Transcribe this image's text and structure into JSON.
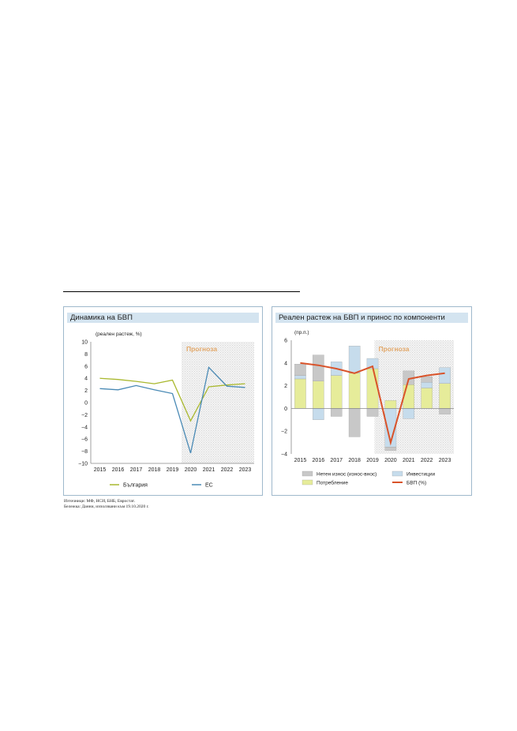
{
  "forecast_label": "Прогноза",
  "source_line1": "Източници: МФ, НСИ, БНБ, Евростат.",
  "source_line2": "Бележка: Данни, използвани към 19.10.2020 г.",
  "colors": {
    "bulgaria": "#a9b82e",
    "eu": "#4a8ab5",
    "gdp": "#d9532a",
    "net_exports": "#c8c8c8",
    "investment": "#c6dcec",
    "consumption": "#e6ec9a",
    "forecast_text": "#e3a96b",
    "title_bg": "#d4e4f0"
  },
  "chart_data": [
    {
      "type": "line",
      "title": "Динамика на БВП",
      "ylabel": "(реален растеж, %)",
      "xlabel": "",
      "categories": [
        "2015",
        "2016",
        "2017",
        "2018",
        "2019",
        "2020",
        "2021",
        "2022",
        "2023"
      ],
      "ylim": [
        -10,
        10
      ],
      "yticks": [
        10,
        8,
        6,
        4,
        2,
        0,
        -2,
        -4,
        -6,
        -8,
        -10
      ],
      "forecast_from": "2020",
      "legend_position": "bottom",
      "series": [
        {
          "name": "България",
          "values": [
            4.0,
            3.8,
            3.5,
            3.1,
            3.7,
            -3.0,
            2.6,
            2.9,
            3.1
          ]
        },
        {
          "name": "ЕС",
          "values": [
            2.3,
            2.1,
            2.8,
            2.1,
            1.5,
            -8.3,
            5.8,
            2.7,
            2.5
          ]
        }
      ]
    },
    {
      "type": "bar",
      "stacked": true,
      "title": "Реален растеж на БВП и принос по компоненти",
      "ylabel": "(пр.п.)",
      "xlabel": "",
      "categories": [
        "2015",
        "2016",
        "2017",
        "2018",
        "2019",
        "2020",
        "2021",
        "2022",
        "2023"
      ],
      "ylim": [
        -4,
        6
      ],
      "yticks": [
        6,
        4,
        2,
        0,
        -2,
        -4
      ],
      "forecast_from": "2020",
      "legend_position": "bottom",
      "series": [
        {
          "name": "Потребление",
          "kind": "bar",
          "values": [
            2.6,
            2.4,
            2.9,
            3.1,
            3.5,
            0.7,
            2.1,
            1.8,
            2.2
          ]
        },
        {
          "name": "Инвестиции",
          "kind": "bar",
          "values": [
            0.3,
            -1.0,
            1.2,
            2.4,
            0.9,
            -3.4,
            -0.9,
            0.5,
            1.4
          ]
        },
        {
          "name": "Нетен износ (износ-внос)",
          "kind": "bar",
          "values": [
            1.0,
            2.3,
            -0.7,
            -2.5,
            -0.7,
            -0.3,
            1.2,
            0.5,
            -0.5
          ]
        },
        {
          "name": "БВП (%)",
          "kind": "line",
          "values": [
            4.0,
            3.8,
            3.5,
            3.1,
            3.7,
            -3.0,
            2.6,
            2.9,
            3.1
          ]
        }
      ]
    }
  ]
}
